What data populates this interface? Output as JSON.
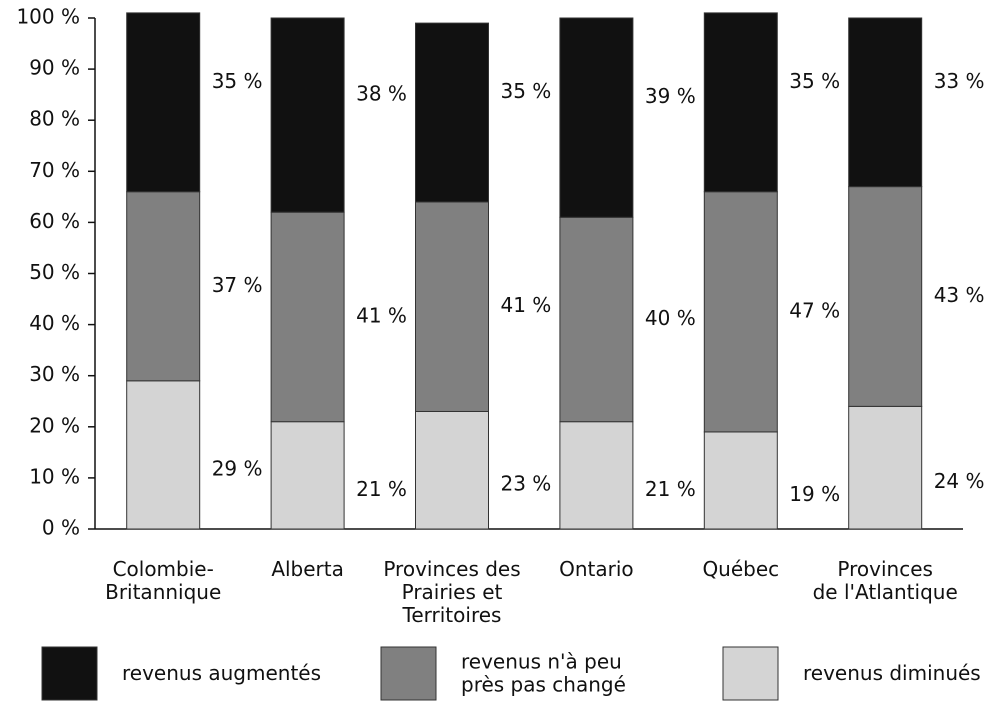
{
  "chart_data": {
    "type": "stacked_bar",
    "categories": [
      "Colombie-\nBritannique",
      "Alberta",
      "Provinces des\nPrairies et\nTerritoires",
      "Ontario",
      "Québec",
      "Provinces\nde l'Atlantique"
    ],
    "series": [
      {
        "name": "revenus diminués",
        "color": "#d4d4d4",
        "values": [
          29,
          21,
          23,
          21,
          19,
          24
        ],
        "value_labels": [
          "29 %",
          "21 %",
          "23 %",
          "21 %",
          "19 %",
          "24 %"
        ]
      },
      {
        "name": "revenus n'à peu\nprès pas changé",
        "color": "#808080",
        "values": [
          37,
          41,
          41,
          40,
          47,
          43
        ],
        "value_labels": [
          "37 %",
          "41 %",
          "41 %",
          "40 %",
          "47 %",
          "43 %"
        ]
      },
      {
        "name": "revenus augmentés",
        "color": "#111111",
        "values": [
          35,
          38,
          35,
          39,
          35,
          33
        ],
        "value_labels": [
          "35 %",
          "38 %",
          "35 %",
          "39 %",
          "35 %",
          "33 %"
        ]
      }
    ],
    "ylim": [
      0,
      100
    ],
    "yticks": [
      {
        "value": 0,
        "label": "0 %"
      },
      {
        "value": 10,
        "label": "10 %"
      },
      {
        "value": 20,
        "label": "20 %"
      },
      {
        "value": 30,
        "label": "30 %"
      },
      {
        "value": 40,
        "label": "40 %"
      },
      {
        "value": 50,
        "label": "50 %"
      },
      {
        "value": 60,
        "label": "60 %"
      },
      {
        "value": 70,
        "label": "70 %"
      },
      {
        "value": 80,
        "label": "80 %"
      },
      {
        "value": 90,
        "label": "90 %"
      },
      {
        "value": 100,
        "label": "100 %"
      }
    ],
    "grid": false
  }
}
